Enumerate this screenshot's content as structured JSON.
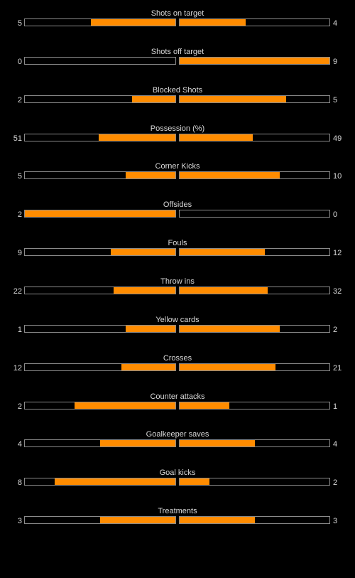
{
  "colors": {
    "background": "#000000",
    "bar_fill": "#ff8c00",
    "bar_border": "#8a8a8a",
    "text": "#d9d9d9"
  },
  "stats": [
    {
      "label": "Shots on target",
      "home": "5",
      "away": "4",
      "home_fraction": 0.56,
      "away_fraction": 0.44
    },
    {
      "label": "Shots off target",
      "home": "0",
      "away": "9",
      "home_fraction": 0.0,
      "away_fraction": 1.0
    },
    {
      "label": "Blocked Shots",
      "home": "2",
      "away": "5",
      "home_fraction": 0.29,
      "away_fraction": 0.71
    },
    {
      "label": "Possession (%)",
      "home": "51",
      "away": "49",
      "home_fraction": 0.51,
      "away_fraction": 0.49
    },
    {
      "label": "Corner Kicks",
      "home": "5",
      "away": "10",
      "home_fraction": 0.33,
      "away_fraction": 0.67
    },
    {
      "label": "Offsides",
      "home": "2",
      "away": "0",
      "home_fraction": 1.0,
      "away_fraction": 0.0
    },
    {
      "label": "Fouls",
      "home": "9",
      "away": "12",
      "home_fraction": 0.43,
      "away_fraction": 0.57
    },
    {
      "label": "Throw ins",
      "home": "22",
      "away": "32",
      "home_fraction": 0.41,
      "away_fraction": 0.59
    },
    {
      "label": "Yellow cards",
      "home": "1",
      "away": "2",
      "home_fraction": 0.33,
      "away_fraction": 0.67
    },
    {
      "label": "Crosses",
      "home": "12",
      "away": "21",
      "home_fraction": 0.36,
      "away_fraction": 0.64
    },
    {
      "label": "Counter attacks",
      "home": "2",
      "away": "1",
      "home_fraction": 0.67,
      "away_fraction": 0.33
    },
    {
      "label": "Goalkeeper saves",
      "home": "4",
      "away": "4",
      "home_fraction": 0.5,
      "away_fraction": 0.5
    },
    {
      "label": "Goal kicks",
      "home": "8",
      "away": "2",
      "home_fraction": 0.8,
      "away_fraction": 0.2
    },
    {
      "label": "Treatments",
      "home": "3",
      "away": "3",
      "home_fraction": 0.5,
      "away_fraction": 0.5
    }
  ]
}
